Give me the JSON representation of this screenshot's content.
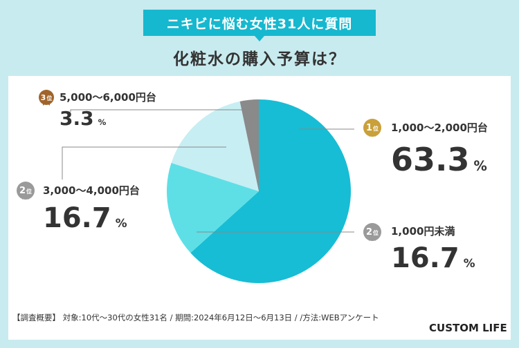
{
  "banner": "ニキビに悩む女性31人に質問",
  "subtitle": "化粧水の購入予算は？",
  "chart_data": {
    "type": "pie",
    "title": "化粧水の購入予算は？",
    "start_angle_deg": 0,
    "direction": "clockwise",
    "slices": [
      {
        "label": "1,000〜2,000円台",
        "value": 63.3,
        "rank": "1",
        "color": "#17bdd4"
      },
      {
        "label": "1,000円未満",
        "value": 16.7,
        "rank": "2",
        "color": "#5edfe6"
      },
      {
        "label": "3,000〜4,000円台",
        "value": 16.7,
        "rank": "2",
        "color": "#c7eef3"
      },
      {
        "label": "5,000〜6,000円台",
        "value": 3.3,
        "rank": "3",
        "color": "#8a8a8a"
      }
    ]
  },
  "labels": {
    "rank_suffix": "位",
    "pct_suffix": "%",
    "gold": "#c9a03a",
    "silver": "#9a9a9a",
    "bronze": "#a0642a",
    "items": [
      {
        "rank": "1",
        "category": "1,000〜2,000円台",
        "value": "63.3"
      },
      {
        "rank": "2",
        "category": "1,000円未満",
        "value": "16.7"
      },
      {
        "rank": "2",
        "category": "3,000〜4,000円台",
        "value": "16.7"
      },
      {
        "rank": "3",
        "category": "5,000〜6,000円台",
        "value": "3.3"
      }
    ]
  },
  "footer": "【調査概要】 対象:10代〜30代の女性31名 / 期間:2024年6月12日〜6月13日 / /方法:WEBアンケート",
  "logo": "CUSTOM LIFE"
}
